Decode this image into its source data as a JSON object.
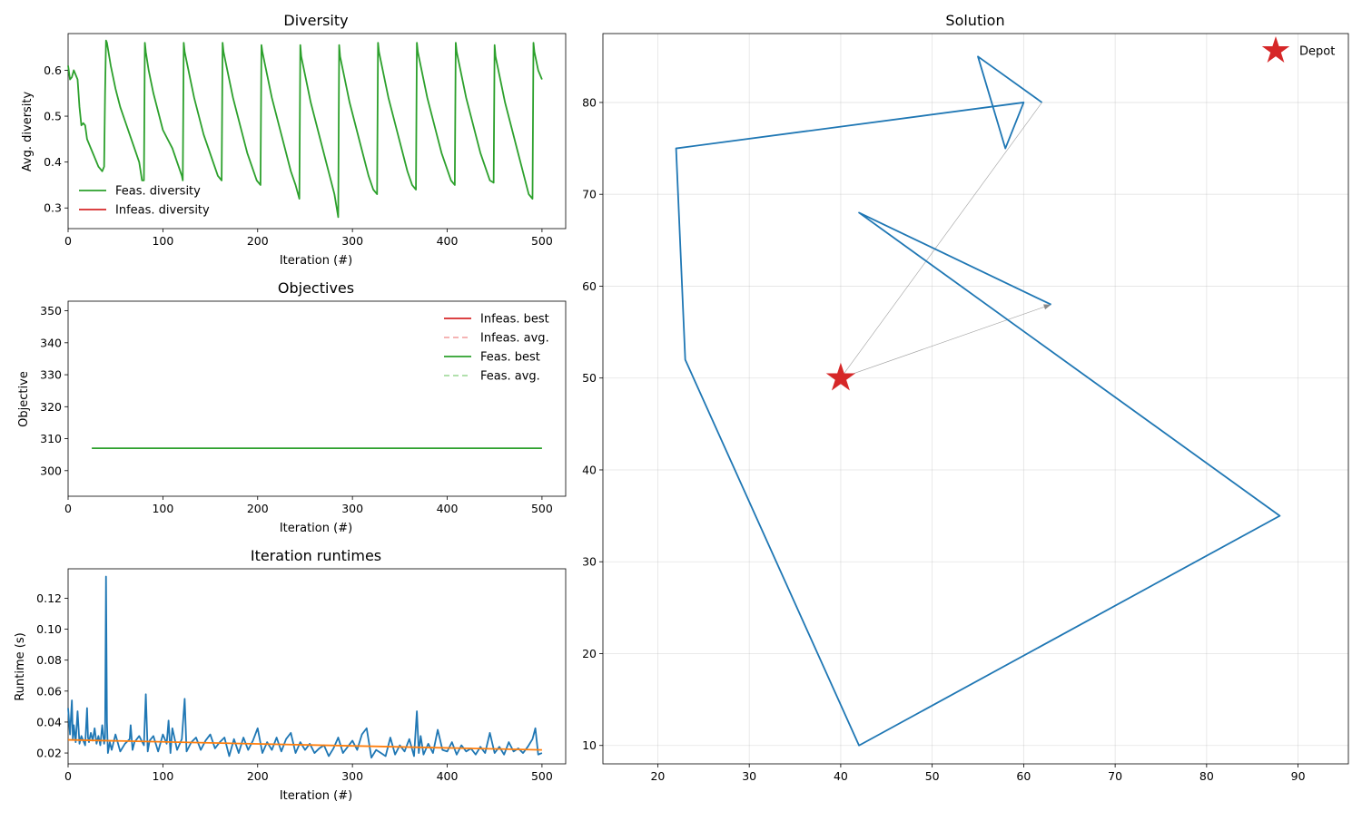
{
  "figure": {
    "panels": [
      {
        "id": "diversity",
        "title": "Diversity",
        "xlabel": "Iteration (#)",
        "ylabel": "Avg. diversity"
      },
      {
        "id": "objectives",
        "title": "Objectives",
        "xlabel": "Iteration (#)",
        "ylabel": "Objective"
      },
      {
        "id": "runtimes",
        "title": "Iteration runtimes",
        "xlabel": "Iteration (#)",
        "ylabel": "Runtime (s)"
      },
      {
        "id": "solution",
        "title": "Solution",
        "xlabel": "",
        "ylabel": ""
      }
    ]
  },
  "chart_data": [
    {
      "type": "line",
      "title": "Diversity",
      "xlabel": "Iteration (#)",
      "ylabel": "Avg. diversity",
      "xlim": [
        0,
        525
      ],
      "ylim": [
        0.255,
        0.68
      ],
      "xticks": [
        0,
        100,
        200,
        300,
        400,
        500
      ],
      "yticks": [
        0.3,
        0.4,
        0.5,
        0.6
      ],
      "legend": {
        "position": "lower-left",
        "entries": [
          "Feas. diversity",
          "Infeas. diversity"
        ]
      },
      "colors": {
        "feas": "#2ca02c",
        "infeas": "#d62728"
      },
      "series": [
        {
          "name": "Feas. diversity",
          "color": "#2ca02c",
          "x": [
            0,
            2,
            4,
            6,
            8,
            10,
            12,
            14,
            16,
            18,
            20,
            22,
            24,
            26,
            28,
            30,
            32,
            34,
            36,
            38,
            39,
            40,
            41,
            45,
            50,
            55,
            60,
            65,
            70,
            75,
            78,
            80,
            81,
            82,
            85,
            90,
            95,
            100,
            105,
            110,
            115,
            120,
            121,
            122,
            123,
            128,
            133,
            138,
            143,
            148,
            153,
            158,
            162,
            163,
            164,
            169,
            174,
            179,
            184,
            189,
            194,
            199,
            203,
            204,
            205,
            210,
            215,
            220,
            225,
            230,
            235,
            240,
            244,
            245,
            246,
            251,
            256,
            261,
            266,
            271,
            276,
            281,
            285,
            286,
            287,
            292,
            297,
            302,
            307,
            312,
            317,
            322,
            326,
            327,
            328,
            333,
            338,
            343,
            348,
            353,
            358,
            363,
            367,
            368,
            369,
            374,
            379,
            384,
            389,
            394,
            399,
            404,
            408,
            409,
            410,
            415,
            420,
            425,
            430,
            435,
            440,
            445,
            449,
            450,
            451,
            456,
            461,
            466,
            471,
            476,
            481,
            486,
            490,
            491,
            492,
            496,
            500
          ],
          "y": [
            0.61,
            0.58,
            0.585,
            0.6,
            0.59,
            0.58,
            0.52,
            0.48,
            0.485,
            0.48,
            0.45,
            0.44,
            0.43,
            0.42,
            0.41,
            0.4,
            0.39,
            0.385,
            0.38,
            0.39,
            0.55,
            0.665,
            0.66,
            0.61,
            0.56,
            0.52,
            0.49,
            0.46,
            0.43,
            0.4,
            0.36,
            0.36,
            0.66,
            0.64,
            0.6,
            0.55,
            0.51,
            0.47,
            0.45,
            0.43,
            0.4,
            0.37,
            0.36,
            0.66,
            0.64,
            0.59,
            0.54,
            0.5,
            0.46,
            0.43,
            0.4,
            0.37,
            0.36,
            0.66,
            0.64,
            0.59,
            0.54,
            0.5,
            0.46,
            0.42,
            0.39,
            0.36,
            0.35,
            0.655,
            0.64,
            0.59,
            0.54,
            0.5,
            0.46,
            0.42,
            0.38,
            0.35,
            0.32,
            0.655,
            0.63,
            0.58,
            0.53,
            0.49,
            0.45,
            0.41,
            0.37,
            0.33,
            0.28,
            0.655,
            0.63,
            0.58,
            0.53,
            0.49,
            0.45,
            0.41,
            0.37,
            0.34,
            0.33,
            0.66,
            0.64,
            0.59,
            0.54,
            0.5,
            0.46,
            0.42,
            0.38,
            0.35,
            0.34,
            0.66,
            0.64,
            0.59,
            0.54,
            0.5,
            0.46,
            0.42,
            0.39,
            0.36,
            0.35,
            0.66,
            0.64,
            0.59,
            0.54,
            0.5,
            0.46,
            0.42,
            0.39,
            0.36,
            0.355,
            0.655,
            0.63,
            0.58,
            0.53,
            0.49,
            0.45,
            0.41,
            0.37,
            0.33,
            0.32,
            0.66,
            0.64,
            0.6,
            0.58
          ]
        }
      ]
    },
    {
      "type": "line",
      "title": "Objectives",
      "xlabel": "Iteration (#)",
      "ylabel": "Objective",
      "xlim": [
        0,
        525
      ],
      "ylim": [
        292,
        353
      ],
      "xticks": [
        0,
        100,
        200,
        300,
        400,
        500
      ],
      "yticks": [
        300,
        310,
        320,
        330,
        340,
        350
      ],
      "legend": {
        "position": "top-right",
        "entries": [
          "Infeas. best",
          "Infeas. avg.",
          "Feas. best",
          "Feas. avg."
        ]
      },
      "legend_styles": [
        {
          "color": "#d62728",
          "dashed": false
        },
        {
          "color": "#f4a9aa",
          "dashed": true
        },
        {
          "color": "#2ca02c",
          "dashed": false
        },
        {
          "color": "#a6dba0",
          "dashed": true
        }
      ],
      "series": [
        {
          "name": "Feas. best",
          "color": "#2ca02c",
          "x": [
            25,
            500
          ],
          "y": [
            307,
            307
          ]
        }
      ]
    },
    {
      "type": "line",
      "title": "Iteration runtimes",
      "xlabel": "Iteration (#)",
      "ylabel": "Runtime (s)",
      "xlim": [
        0,
        525
      ],
      "ylim": [
        0.013,
        0.139
      ],
      "xticks": [
        0,
        100,
        200,
        300,
        400,
        500
      ],
      "yticks": [
        0.02,
        0.04,
        0.06,
        0.08,
        0.1,
        0.12
      ],
      "series": [
        {
          "name": "",
          "color": "#1f77b4",
          "x": [
            0,
            2,
            4,
            5,
            6,
            8,
            10,
            12,
            14,
            16,
            18,
            20,
            21,
            22,
            24,
            26,
            28,
            30,
            32,
            34,
            36,
            38,
            39,
            40,
            41,
            42,
            44,
            46,
            50,
            55,
            60,
            65,
            66,
            68,
            70,
            75,
            80,
            82,
            84,
            86,
            90,
            95,
            100,
            104,
            106,
            108,
            110,
            115,
            120,
            123,
            125,
            130,
            135,
            140,
            145,
            150,
            155,
            160,
            165,
            170,
            175,
            180,
            185,
            190,
            195,
            200,
            205,
            210,
            215,
            220,
            225,
            230,
            235,
            240,
            245,
            250,
            255,
            260,
            265,
            270,
            275,
            280,
            285,
            290,
            295,
            300,
            305,
            310,
            315,
            320,
            325,
            330,
            335,
            340,
            345,
            350,
            355,
            360,
            365,
            368,
            370,
            372,
            375,
            380,
            385,
            390,
            395,
            400,
            405,
            410,
            415,
            420,
            425,
            430,
            435,
            440,
            445,
            450,
            455,
            460,
            465,
            470,
            475,
            480,
            485,
            490,
            493,
            496,
            500
          ],
          "y": [
            0.049,
            0.032,
            0.054,
            0.029,
            0.038,
            0.027,
            0.047,
            0.026,
            0.031,
            0.028,
            0.025,
            0.049,
            0.03,
            0.027,
            0.033,
            0.028,
            0.036,
            0.026,
            0.031,
            0.025,
            0.038,
            0.026,
            0.03,
            0.134,
            0.04,
            0.02,
            0.027,
            0.022,
            0.032,
            0.021,
            0.026,
            0.029,
            0.038,
            0.022,
            0.027,
            0.031,
            0.025,
            0.058,
            0.021,
            0.028,
            0.031,
            0.021,
            0.032,
            0.026,
            0.041,
            0.02,
            0.036,
            0.022,
            0.029,
            0.055,
            0.021,
            0.027,
            0.03,
            0.022,
            0.028,
            0.032,
            0.023,
            0.027,
            0.03,
            0.018,
            0.029,
            0.02,
            0.03,
            0.022,
            0.028,
            0.036,
            0.02,
            0.027,
            0.022,
            0.03,
            0.021,
            0.029,
            0.033,
            0.02,
            0.027,
            0.022,
            0.026,
            0.02,
            0.023,
            0.025,
            0.018,
            0.023,
            0.03,
            0.02,
            0.024,
            0.028,
            0.022,
            0.032,
            0.036,
            0.017,
            0.022,
            0.02,
            0.018,
            0.03,
            0.019,
            0.025,
            0.021,
            0.029,
            0.018,
            0.047,
            0.02,
            0.031,
            0.019,
            0.026,
            0.02,
            0.035,
            0.022,
            0.021,
            0.027,
            0.019,
            0.025,
            0.021,
            0.023,
            0.019,
            0.024,
            0.02,
            0.033,
            0.02,
            0.024,
            0.019,
            0.027,
            0.021,
            0.023,
            0.02,
            0.024,
            0.029,
            0.036,
            0.019,
            0.02
          ]
        },
        {
          "name": "",
          "color": "#ff7f0e",
          "x": [
            0,
            100,
            200,
            300,
            400,
            500
          ],
          "y": [
            0.0285,
            0.0272,
            0.0259,
            0.0246,
            0.0233,
            0.022
          ]
        }
      ]
    },
    {
      "type": "line",
      "title": "Solution",
      "xlim": [
        14,
        95.5
      ],
      "ylim": [
        8,
        87.5
      ],
      "xticks": [
        20,
        30,
        40,
        50,
        60,
        70,
        80,
        90
      ],
      "yticks": [
        10,
        20,
        30,
        40,
        50,
        60,
        70,
        80
      ],
      "grid": true,
      "legend": {
        "position": "top-right",
        "entries": [
          "Depot"
        ]
      },
      "depot": {
        "x": 40,
        "y": 50,
        "color": "#d62728"
      },
      "route": {
        "color": "#1f77b4",
        "x": [
          63,
          42,
          88,
          42,
          23,
          22,
          60,
          58,
          55,
          62
        ],
        "y": [
          58,
          68,
          35,
          10,
          52,
          75,
          80,
          75,
          85,
          80
        ]
      },
      "depot_arrows": [
        {
          "to_x": 63,
          "to_y": 58
        },
        {
          "from_x": 62,
          "from_y": 80
        }
      ]
    }
  ]
}
